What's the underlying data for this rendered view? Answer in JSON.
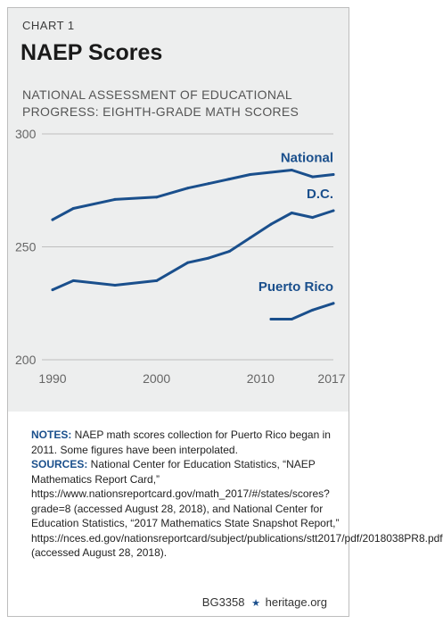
{
  "header": {
    "chart_label": "CHART 1",
    "title": "NAEP Scores",
    "subtitle": "NATIONAL ASSESSMENT OF EDUCATIONAL PROGRESS: EIGHTH-GRADE MATH SCORES"
  },
  "colors": {
    "series": "#1a4f8c",
    "grid": "#bfbfbf",
    "background": "#edeeee"
  },
  "chart_data": {
    "type": "line",
    "title": "NATIONAL ASSESSMENT OF EDUCATIONAL PROGRESS: EIGHTH-GRADE MATH SCORES",
    "xlabel": "",
    "ylabel": "",
    "xlim": [
      1990,
      2017
    ],
    "ylim": [
      200,
      300
    ],
    "x_ticks": [
      1990,
      2000,
      2010,
      2017
    ],
    "y_ticks": [
      200,
      250,
      300
    ],
    "grid": true,
    "legend": "inline labels at line ends",
    "series": [
      {
        "name": "National",
        "x": [
          1990,
          1992,
          1996,
          2000,
          2003,
          2005,
          2007,
          2009,
          2011,
          2013,
          2015,
          2017
        ],
        "values": [
          262,
          267,
          271,
          272,
          276,
          278,
          280,
          282,
          283,
          284,
          281,
          282
        ]
      },
      {
        "name": "D.C.",
        "x": [
          1990,
          1992,
          1996,
          2000,
          2003,
          2005,
          2007,
          2009,
          2011,
          2013,
          2015,
          2017
        ],
        "values": [
          231,
          235,
          233,
          235,
          243,
          245,
          248,
          254,
          260,
          265,
          263,
          266
        ]
      },
      {
        "name": "Puerto Rico",
        "x": [
          2011,
          2013,
          2015,
          2017
        ],
        "values": [
          218,
          218,
          222,
          225
        ]
      }
    ]
  },
  "notes": {
    "notes_label": "NOTES:",
    "notes_text": " NAEP math scores collection for Puerto Rico began in 2011. Some figures have been interpolated.",
    "sources_label": "SOURCES:",
    "sources_text": " National Center for Education Statistics, “NAEP Mathematics Report Card,” https://www.nationsreportcard.gov/math_2017/#/states/scores?grade=8 (accessed August 28, 2018), and National Center for Education Statistics, “2017 Mathematics State Snapshot Report,” https://nces.ed.gov/nationsreportcard/subject/publications/stt2017/pdf/2018038PR8.pdf (accessed August 28, 2018)."
  },
  "footer": {
    "code": "BG3358",
    "star_icon": "star-icon",
    "site": "heritage.org"
  }
}
